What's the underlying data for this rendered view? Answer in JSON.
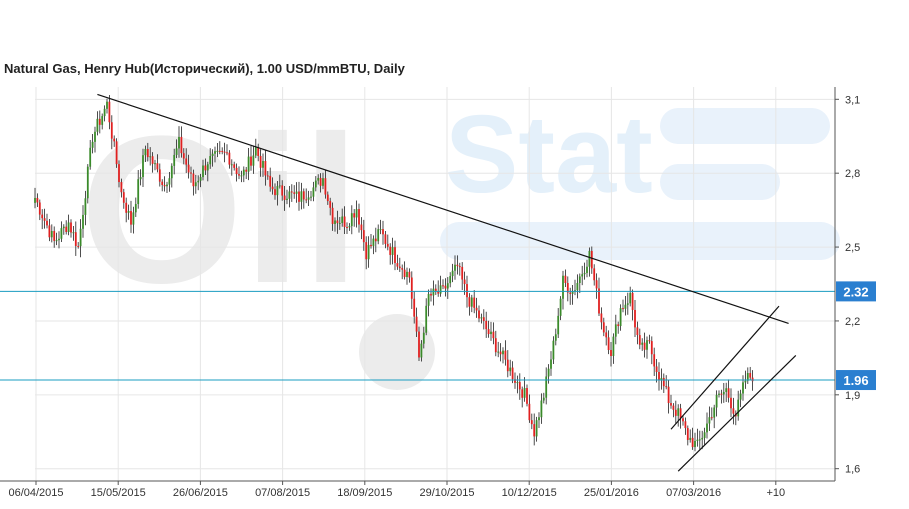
{
  "title": "Natural Gas, Henry Hub(Исторический), 1.00 USD/mmBTU, Daily",
  "watermark": {
    "left": "Oil",
    "right": "Stat"
  },
  "colors": {
    "up": "#3a8a2a",
    "down": "#e02020",
    "level_line": "#1a9cc0",
    "level_box": "#2a7fd0",
    "trend_line": "#111111",
    "grid": "#e6e6e6"
  },
  "chart_data": {
    "type": "ohlc",
    "x_tick_labels": [
      "06/04/2015",
      "15/05/2015",
      "26/06/2015",
      "07/08/2015",
      "18/09/2015",
      "29/10/2015",
      "10/12/2015",
      "25/01/2016",
      "07/03/2016",
      "+10"
    ],
    "y_ticks": [
      1.6,
      1.9,
      2.2,
      2.5,
      2.8,
      3.1
    ],
    "y_tick_labels": [
      "1,6",
      "1,9",
      "2,2",
      "2,5",
      "2,8",
      "3,1"
    ],
    "ylim": [
      1.55,
      3.15
    ],
    "x_range_bars": [
      0,
      299
    ],
    "grid": true,
    "levels": [
      {
        "label": "2.32",
        "value": 2.32
      },
      {
        "label": "1.96",
        "value": 1.96
      }
    ],
    "trendlines": [
      {
        "x1": 26,
        "y1": 3.12,
        "x2": 314,
        "y2": 2.19
      },
      {
        "x1": 265,
        "y1": 1.76,
        "x2": 310,
        "y2": 2.26
      },
      {
        "x1": 268,
        "y1": 1.59,
        "x2": 317,
        "y2": 2.06
      }
    ],
    "anchors": [
      [
        0,
        2.7
      ],
      [
        8,
        2.52
      ],
      [
        14,
        2.6
      ],
      [
        18,
        2.5
      ],
      [
        24,
        2.95
      ],
      [
        30,
        3.08
      ],
      [
        36,
        2.72
      ],
      [
        40,
        2.6
      ],
      [
        46,
        2.9
      ],
      [
        54,
        2.75
      ],
      [
        60,
        2.92
      ],
      [
        66,
        2.75
      ],
      [
        72,
        2.85
      ],
      [
        80,
        2.88
      ],
      [
        86,
        2.78
      ],
      [
        92,
        2.9
      ],
      [
        98,
        2.74
      ],
      [
        104,
        2.72
      ],
      [
        110,
        2.7
      ],
      [
        116,
        2.74
      ],
      [
        120,
        2.78
      ],
      [
        124,
        2.62
      ],
      [
        130,
        2.6
      ],
      [
        134,
        2.66
      ],
      [
        138,
        2.48
      ],
      [
        144,
        2.56
      ],
      [
        150,
        2.46
      ],
      [
        156,
        2.38
      ],
      [
        160,
        2.05
      ],
      [
        164,
        2.3
      ],
      [
        170,
        2.32
      ],
      [
        176,
        2.42
      ],
      [
        180,
        2.3
      ],
      [
        186,
        2.2
      ],
      [
        192,
        2.1
      ],
      [
        198,
        2.0
      ],
      [
        204,
        1.9
      ],
      [
        208,
        1.75
      ],
      [
        212,
        1.9
      ],
      [
        216,
        2.1
      ],
      [
        220,
        2.36
      ],
      [
        224,
        2.32
      ],
      [
        228,
        2.4
      ],
      [
        231,
        2.47
      ],
      [
        236,
        2.2
      ],
      [
        240,
        2.08
      ],
      [
        244,
        2.25
      ],
      [
        248,
        2.3
      ],
      [
        252,
        2.08
      ],
      [
        256,
        2.1
      ],
      [
        260,
        1.98
      ],
      [
        264,
        1.88
      ],
      [
        268,
        1.82
      ],
      [
        272,
        1.73
      ],
      [
        276,
        1.69
      ],
      [
        280,
        1.78
      ],
      [
        284,
        1.88
      ],
      [
        288,
        1.92
      ],
      [
        292,
        1.82
      ],
      [
        296,
        1.96
      ],
      [
        299,
        1.98
      ]
    ]
  }
}
